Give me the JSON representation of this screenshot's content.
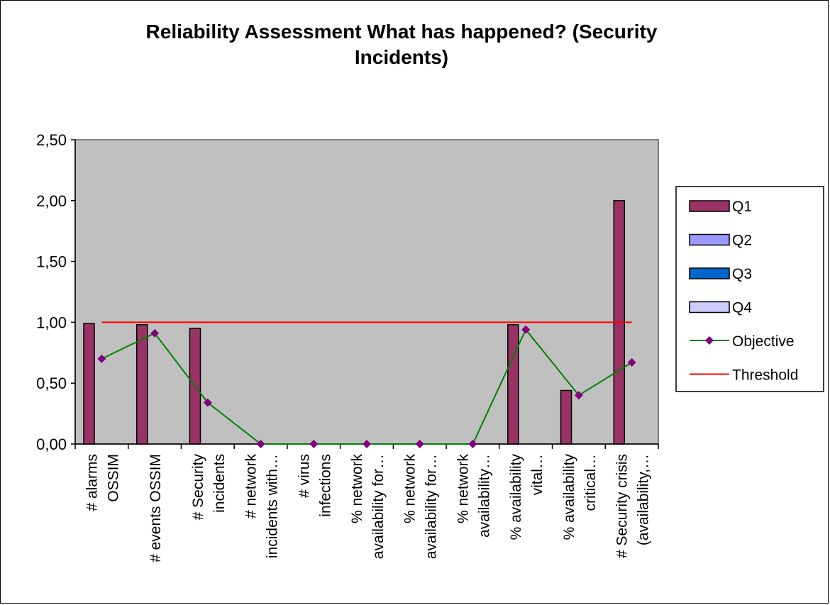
{
  "chart_data": {
    "type": "bar",
    "title": "Reliability Assessment What has happened? (Security Incidents)",
    "title_lines": [
      "Reliability Assessment What has happened? (Security",
      "Incidents)"
    ],
    "xlabel": "",
    "ylabel": "",
    "ylim": [
      0,
      2.5
    ],
    "yticks": [
      "0,00",
      "0,50",
      "1,00",
      "1,50",
      "2,00",
      "2,50"
    ],
    "plot_background": "#c0c0c0",
    "grid": false,
    "legend_position": "right",
    "categories": [
      [
        "# alarms",
        "OSSIM"
      ],
      [
        "# events OSSIM"
      ],
      [
        "# Security",
        "incidents"
      ],
      [
        "# network",
        "incidents with…"
      ],
      [
        "# virus",
        "infections"
      ],
      [
        "% network",
        "availability for…"
      ],
      [
        "% network",
        "availability for…"
      ],
      [
        "% network",
        "availability…"
      ],
      [
        "% availability",
        "vital…"
      ],
      [
        "% availability",
        "critical…"
      ],
      [
        "# Security crisis",
        "(availability,…"
      ]
    ],
    "series": [
      {
        "name": "Q1",
        "kind": "bar",
        "color": "#993366",
        "values": [
          0.99,
          0.98,
          0.95,
          0,
          0,
          0,
          0,
          0,
          0.98,
          0.44,
          2.0
        ]
      },
      {
        "name": "Q2",
        "kind": "bar",
        "color": "#9999ff",
        "values": [
          0,
          0,
          0,
          0,
          0,
          0,
          0,
          0,
          0,
          0,
          0
        ]
      },
      {
        "name": "Q3",
        "kind": "bar",
        "color": "#0066cc",
        "values": [
          0,
          0,
          0,
          0,
          0,
          0,
          0,
          0,
          0,
          0,
          0
        ]
      },
      {
        "name": "Q4",
        "kind": "bar",
        "color": "#ccccff",
        "values": [
          0,
          0,
          0,
          0,
          0,
          0,
          0,
          0,
          0,
          0,
          0
        ]
      },
      {
        "name": "Objective",
        "kind": "line",
        "color": "#008000",
        "marker_color": "#800080",
        "values": [
          0.7,
          0.91,
          0.34,
          0,
          0,
          0,
          0,
          0,
          0.94,
          0.4,
          0.67
        ]
      },
      {
        "name": "Threshold",
        "kind": "line",
        "color": "#ff0000",
        "values": [
          1,
          1,
          1,
          1,
          1,
          1,
          1,
          1,
          1,
          1,
          1
        ]
      }
    ]
  }
}
